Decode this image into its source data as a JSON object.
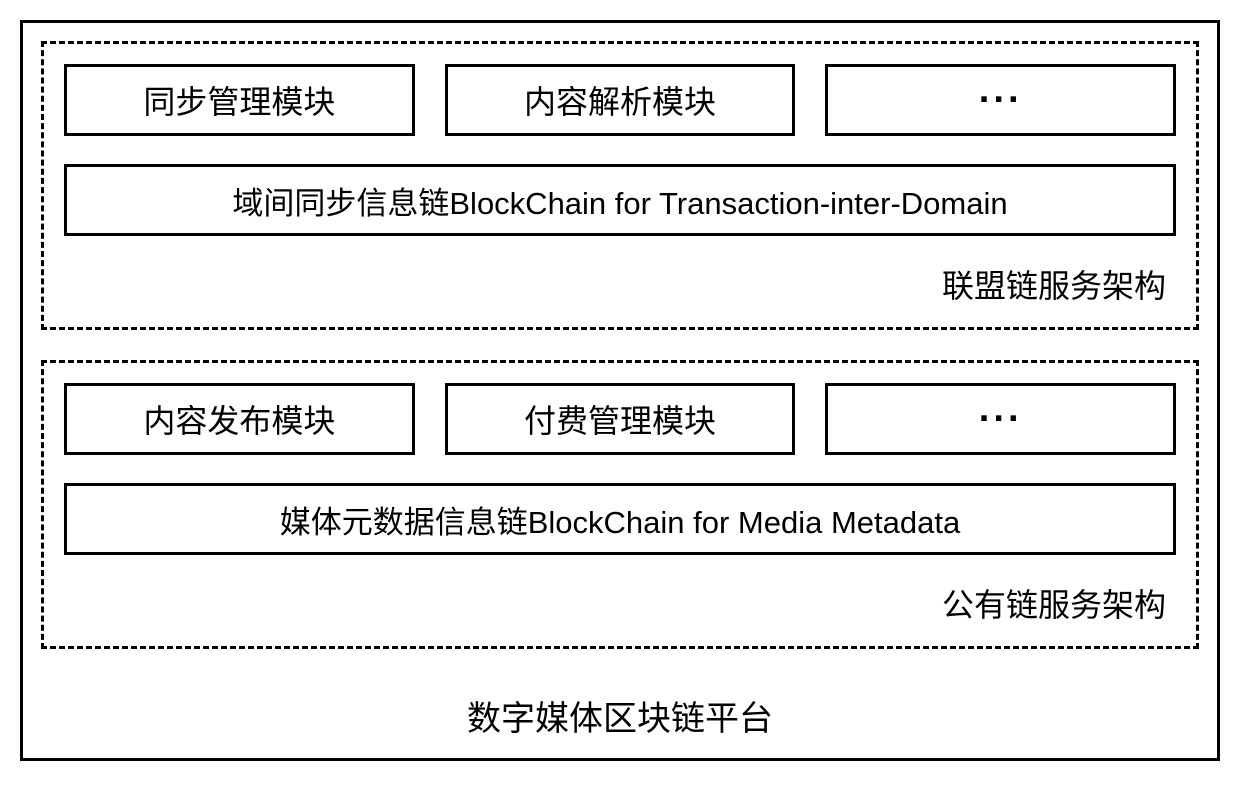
{
  "diagram": {
    "outer_border_color": "#000000",
    "outer_border_width": 3,
    "outer_border_style": "solid",
    "section_border_style": "dashed",
    "section_border_width": 3,
    "section_border_color": "#000000",
    "box_border_style": "solid",
    "box_border_width": 3,
    "box_border_color": "#000000",
    "background_color": "#ffffff",
    "text_color": "#000000",
    "module_fontsize": 32,
    "chain_fontsize": 31,
    "label_fontsize": 32,
    "title_fontsize": 34
  },
  "section1": {
    "modules": {
      "m1": "同步管理模块",
      "m2": "内容解析模块",
      "m3": "···"
    },
    "chain": "域间同步信息链BlockChain for Transaction-inter-Domain",
    "label": "联盟链服务架构"
  },
  "section2": {
    "modules": {
      "m1": "内容发布模块",
      "m2": "付费管理模块",
      "m3": "···"
    },
    "chain": "媒体元数据信息链BlockChain for Media Metadata",
    "label": "公有链服务架构"
  },
  "title": "数字媒体区块链平台"
}
